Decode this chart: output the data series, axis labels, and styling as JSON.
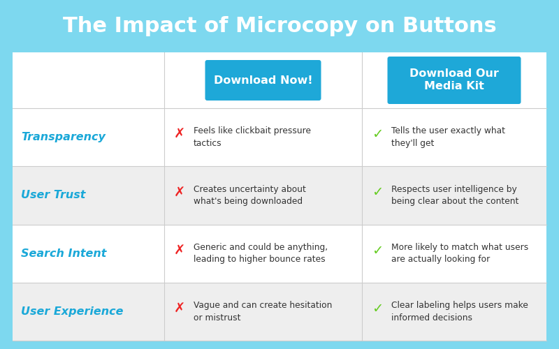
{
  "title": "The Impact of Microcopy on Buttons",
  "title_color": "#ffffff",
  "title_bg_color": "#7dd8ef",
  "title_fontsize": 22,
  "button1_text": "Download Now!",
  "button2_text": "Download Our\nMedia Kit",
  "button_color": "#1ea8d8",
  "button_text_color": "#ffffff",
  "category_color": "#1aa8d8",
  "bad_mark_color": "#ee2222",
  "good_mark_color": "#66cc22",
  "text_color": "#333333",
  "row_separator_color": "#cccccc",
  "content_bg": "#ffffff",
  "row_colors": [
    "#ffffff",
    "#eeeeee",
    "#ffffff",
    "#eeeeee"
  ],
  "header_row_color": "#ffffff",
  "border_color": "#aaddee",
  "categories": [
    "Transparency",
    "User Trust",
    "Search Intent",
    "User Experience"
  ],
  "bad_texts": [
    "Feels like clickbait pressure\ntactics",
    "Creates uncertainty about\nwhat's being downloaded",
    "Generic and could be anything,\nleading to higher bounce rates",
    "Vague and can create hesitation\nor mistrust"
  ],
  "good_texts": [
    "Tells the user exactly what\nthey'll get",
    "Respects user intelligence by\nbeing clear about the content",
    "More likely to match what users\nare actually looking for",
    "Clear labeling helps users make\ninformed decisions"
  ],
  "fig_width": 8.0,
  "fig_height": 5.0
}
